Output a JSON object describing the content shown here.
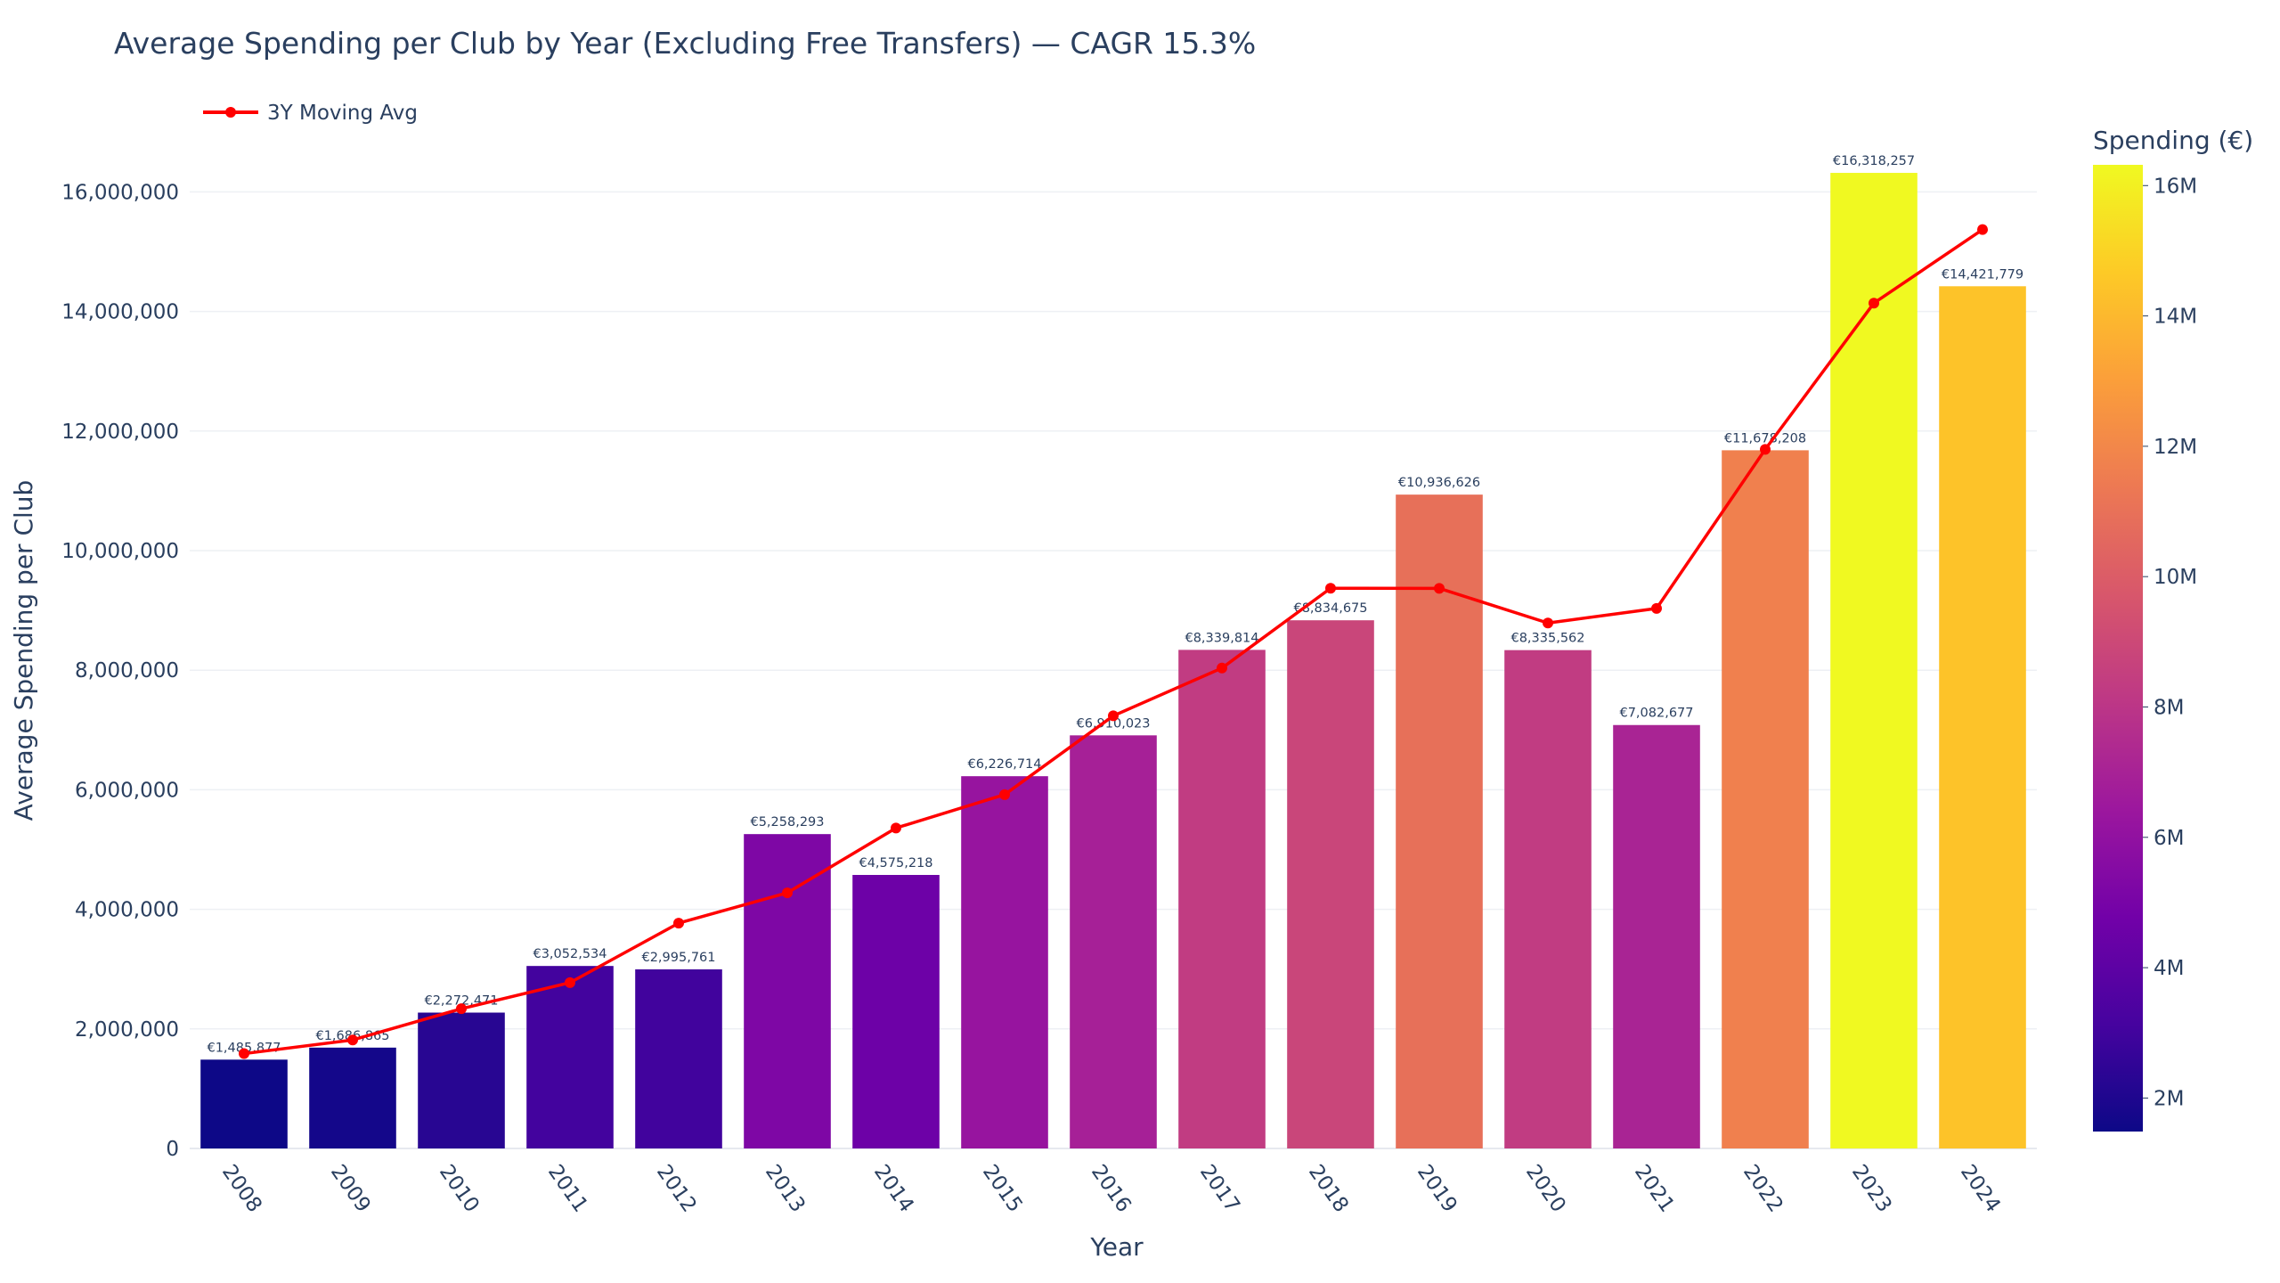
{
  "chart_data": {
    "type": "bar",
    "title": "Average Spending per Club by Year (Excluding Free Transfers) — CAGR 15.3%",
    "xlabel": "Year",
    "ylabel": "Average Spending per Club",
    "categories": [
      "2008",
      "2009",
      "2010",
      "2011",
      "2012",
      "2013",
      "2014",
      "2015",
      "2016",
      "2017",
      "2018",
      "2019",
      "2020",
      "2021",
      "2022",
      "2023",
      "2024"
    ],
    "values": [
      1485877,
      1686865,
      2272471,
      3052534,
      2995761,
      5258293,
      4575218,
      6226714,
      6910023,
      8339814,
      8834675,
      10936626,
      8335562,
      7082677,
      11678208,
      16318257,
      14421779
    ],
    "value_labels": [
      "€1,485,877",
      "€1,686,865",
      "€2,272,471",
      "€3,052,534",
      "€2,995,761",
      "€5,258,293",
      "€4,575,218",
      "€6,226,714",
      "€6,910,023",
      "€8,339,814",
      "€8,834,675",
      "€10,936,626",
      "€8,335,562",
      "€7,082,677",
      "€11,678,208",
      "€16,318,257",
      "€14,421,779"
    ],
    "series": [
      {
        "name": "3Y Moving Avg",
        "type": "line",
        "color": "#ff0000",
        "values": [
          1586371,
          1815071,
          2337404,
          2773589,
          3768943,
          4276196,
          5359739,
          5919083,
          7236554,
          8035584,
          9370200,
          9368954,
          8789102,
          9033636,
          11693049,
          14139524,
          15370018
        ]
      }
    ],
    "ylim": [
      0,
      16900000
    ],
    "y_ticks": [
      0,
      2000000,
      4000000,
      6000000,
      8000000,
      10000000,
      12000000,
      14000000,
      16000000
    ],
    "y_tick_labels": [
      "0",
      "2,000,000",
      "4,000,000",
      "6,000,000",
      "8,000,000",
      "10,000,000",
      "12,000,000",
      "14,000,000",
      "16,000,000"
    ],
    "grid": true,
    "legend_position": "top-left",
    "colorbar": {
      "title": "Spending (€)",
      "colorscale": "plasma",
      "range": [
        1485877,
        16318257
      ],
      "ticks": [
        2000000,
        4000000,
        6000000,
        8000000,
        10000000,
        12000000,
        14000000,
        16000000
      ],
      "tick_labels": [
        "2M",
        "4M",
        "6M",
        "8M",
        "10M",
        "12M",
        "14M",
        "16M"
      ]
    }
  }
}
